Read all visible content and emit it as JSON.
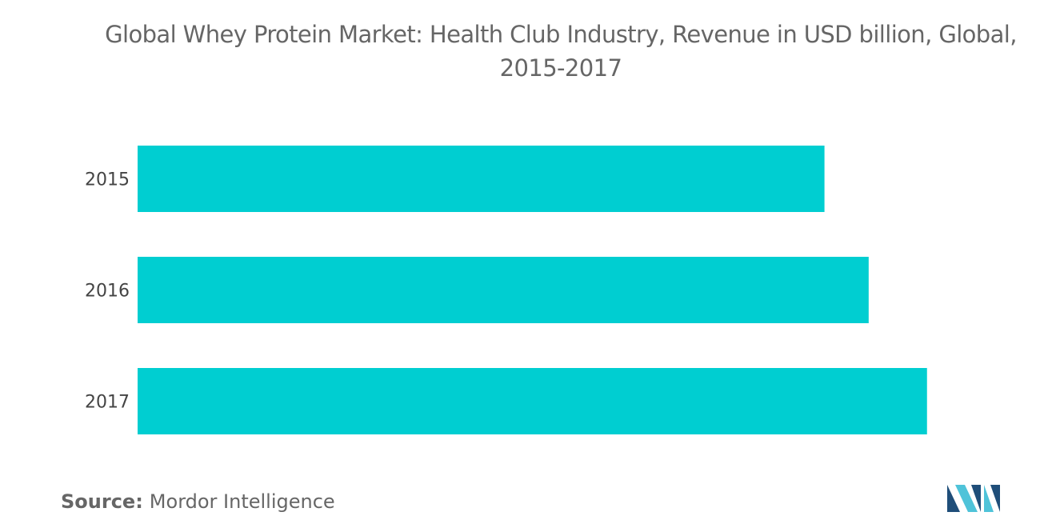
{
  "title_line1": "Global Whey Protein Market: Health Club Industry, Revenue in USD billion, Global,",
  "title_line2": "2015-2017",
  "source_label": "Source:",
  "source_name": "Mordor Intelligence",
  "colors": {
    "bar": "#00CED1",
    "logo_dark": "#1F4E79",
    "logo_light": "#4FC3D9"
  },
  "chart_data": {
    "type": "bar",
    "orientation": "horizontal",
    "categories": [
      "2015",
      "2016",
      "2017"
    ],
    "values": [
      7.77,
      8.27,
      8.93
    ],
    "title": "Global Whey Protein Market: Health Club Industry, Revenue in USD billion, Global, 2015-2017",
    "xlabel": "",
    "ylabel": "",
    "xlim": [
      0,
      10
    ],
    "grid": false,
    "legend": "none"
  }
}
